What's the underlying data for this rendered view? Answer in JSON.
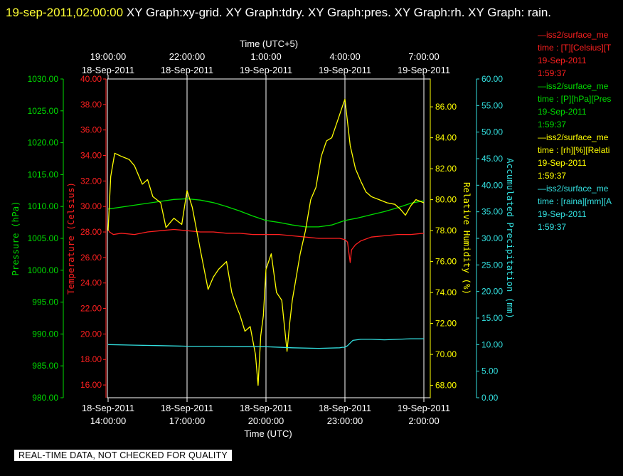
{
  "header": {
    "timestamp": "19-sep-2011,02:00:00",
    "graphs": "XY Graph:xy-grid.  XY Graph:tdry.  XY Graph:pres.  XY Graph:rh.  XY Graph: rain."
  },
  "footer": "REAL-TIME DATA, NOT CHECKED FOR QUALITY",
  "colors": {
    "pressure": "#00dd00",
    "temperature": "#ff2020",
    "humidity": "#ffff00",
    "precip": "#33e0e0",
    "grid": "#ffffff"
  },
  "legend": [
    {
      "line1": "—iss2/surface_me",
      "line2": "time : [T][Celsius][T",
      "line3": "19-Sep-2011",
      "line4": "1:59:37",
      "color": "#ff2020"
    },
    {
      "line1": "—iss2/surface_me",
      "line2": "time : [P][hPa][Pres",
      "line3": "19-Sep-2011",
      "line4": "1:59:37",
      "color": "#00dd00"
    },
    {
      "line1": "—iss2/surface_me",
      "line2": "time : [rh][%][Relati",
      "line3": "19-Sep-2011",
      "line4": "1:59:37",
      "color": "#ffff00"
    },
    {
      "line1": "—iss2/surface_me",
      "line2": "time : [raina][mm][A",
      "line3": "19-Sep-2011",
      "line4": "1:59:37",
      "color": "#33e0e0"
    }
  ],
  "chart_data": {
    "type": "line",
    "top_axis": {
      "title": "Time (UTC+5)",
      "ticks": [
        {
          "t": "19:00:00",
          "d": "18-Sep-2011"
        },
        {
          "t": "22:00:00",
          "d": "18-Sep-2011"
        },
        {
          "t": "1:00:00",
          "d": "19-Sep-2011"
        },
        {
          "t": "4:00:00",
          "d": "19-Sep-2011"
        },
        {
          "t": "7:00:00",
          "d": "19-Sep-2011"
        }
      ]
    },
    "bottom_axis": {
      "title": "Time (UTC)",
      "ticks": [
        {
          "d": "18-Sep-2011",
          "t": "14:00:00"
        },
        {
          "d": "18-Sep-2011",
          "t": "17:00:00"
        },
        {
          "d": "18-Sep-2011",
          "t": "20:00:00"
        },
        {
          "d": "18-Sep-2011",
          "t": "23:00:00"
        },
        {
          "d": "19-Sep-2011",
          "t": "2:00:00"
        }
      ]
    },
    "xlim_hours_utc": [
      14.0,
      26.0
    ],
    "axes": {
      "pressure": {
        "label": "Pressure (hPa)",
        "ylim": [
          980,
          1030
        ],
        "ticks": [
          "1030.00",
          "1025.00",
          "1020.00",
          "1015.00",
          "1010.00",
          "1005.00",
          "1000.00",
          "995.00",
          "990.00",
          "985.00",
          "980.00"
        ]
      },
      "temperature": {
        "label": "Temperature (Celsius)",
        "ylim": [
          15,
          40
        ],
        "ticks": [
          "40.00",
          "38.00",
          "36.00",
          "34.00",
          "32.00",
          "30.00",
          "28.00",
          "26.00",
          "24.00",
          "22.00",
          "20.00",
          "18.00",
          "16.00"
        ]
      },
      "humidity": {
        "label": "Relative Humidity (%)",
        "ylim": [
          67.2,
          87.8
        ],
        "ticks": [
          "86.00",
          "84.00",
          "82.00",
          "80.00",
          "78.00",
          "76.00",
          "74.00",
          "72.00",
          "70.00",
          "68.00"
        ]
      },
      "precip": {
        "label": "Accumulated Precipitation (mm)",
        "ylim": [
          0,
          60
        ],
        "ticks": [
          "60.00",
          "55.00",
          "50.00",
          "45.00",
          "40.00",
          "35.00",
          "30.00",
          "25.00",
          "20.00",
          "15.00",
          "10.00",
          "5.00",
          "0.00"
        ]
      }
    },
    "series": [
      {
        "key": "pressure",
        "axis": "pressure",
        "x": [
          14.0,
          15.0,
          16.0,
          16.5,
          17.0,
          17.5,
          18.0,
          18.5,
          19.0,
          19.5,
          20.0,
          20.5,
          21.0,
          21.5,
          22.0,
          22.5,
          23.0,
          23.5,
          24.0,
          24.5,
          25.0,
          25.5,
          26.0
        ],
        "y": [
          1009.6,
          1010.2,
          1010.8,
          1011.1,
          1011.2,
          1011.0,
          1010.6,
          1010.0,
          1009.3,
          1008.5,
          1007.8,
          1007.5,
          1007.1,
          1006.8,
          1006.8,
          1007.1,
          1007.8,
          1008.2,
          1008.7,
          1009.2,
          1009.8,
          1010.5,
          1010.9
        ]
      },
      {
        "key": "temperature",
        "axis": "temperature",
        "x": [
          14.0,
          14.05,
          14.2,
          14.5,
          15.0,
          15.5,
          16.0,
          16.5,
          17.0,
          17.5,
          18.0,
          18.5,
          19.0,
          19.5,
          20.0,
          20.5,
          21.0,
          21.5,
          22.0,
          22.5,
          22.8,
          23.0,
          23.1,
          23.15,
          23.2,
          23.25,
          23.4,
          23.6,
          24.0,
          24.5,
          25.0,
          25.5,
          26.0
        ],
        "y": [
          28.2,
          28.0,
          27.8,
          27.9,
          27.8,
          28.0,
          28.1,
          28.2,
          28.1,
          28.0,
          28.0,
          27.9,
          27.9,
          27.8,
          27.8,
          27.8,
          27.7,
          27.6,
          27.5,
          27.5,
          27.5,
          27.4,
          27.2,
          26.4,
          25.6,
          26.6,
          27.0,
          27.3,
          27.6,
          27.7,
          27.8,
          27.8,
          27.9
        ]
      },
      {
        "key": "humidity",
        "axis": "humidity",
        "x": [
          14.0,
          14.1,
          14.25,
          14.5,
          14.8,
          15.0,
          15.3,
          15.5,
          15.7,
          16.0,
          16.2,
          16.5,
          16.8,
          17.0,
          17.2,
          17.5,
          17.8,
          18.0,
          18.2,
          18.5,
          18.7,
          18.9,
          19.0,
          19.2,
          19.4,
          19.6,
          19.7,
          19.8,
          19.9,
          20.0,
          20.2,
          20.4,
          20.6,
          20.8,
          20.9,
          21.0,
          21.3,
          21.5,
          21.7,
          21.9,
          22.1,
          22.3,
          22.5,
          22.7,
          22.9,
          23.0,
          23.2,
          23.4,
          23.5,
          23.6,
          23.8,
          24.0,
          24.3,
          24.6,
          24.9,
          25.1,
          25.3,
          25.5,
          25.7,
          26.0
        ],
        "y": [
          78.0,
          81.5,
          83.0,
          82.8,
          82.6,
          82.2,
          81.0,
          81.3,
          80.2,
          79.8,
          78.2,
          78.8,
          78.4,
          80.6,
          79.5,
          76.8,
          74.2,
          75.0,
          75.5,
          76.0,
          74.0,
          73.0,
          72.6,
          71.5,
          71.8,
          70.0,
          68.0,
          71.2,
          72.5,
          75.5,
          76.5,
          74.0,
          73.5,
          70.2,
          72.0,
          73.5,
          76.5,
          78.0,
          80.0,
          80.8,
          82.8,
          83.8,
          84.0,
          85.0,
          86.0,
          86.5,
          83.5,
          82.0,
          81.6,
          81.2,
          80.5,
          80.2,
          80.0,
          79.8,
          79.7,
          79.4,
          79.0,
          79.6,
          80.0,
          79.8
        ]
      },
      {
        "key": "precip",
        "axis": "precip",
        "x": [
          14.0,
          15.0,
          16.0,
          17.0,
          18.0,
          19.0,
          20.0,
          21.0,
          22.0,
          22.8,
          22.9,
          23.0,
          23.1,
          23.3,
          23.6,
          24.0,
          24.5,
          25.0,
          25.5,
          26.0
        ],
        "y": [
          10.0,
          9.9,
          9.8,
          9.7,
          9.7,
          9.6,
          9.6,
          9.4,
          9.3,
          9.4,
          9.5,
          9.5,
          9.8,
          10.8,
          11.0,
          11.0,
          10.9,
          11.0,
          11.1,
          11.1
        ]
      }
    ]
  }
}
